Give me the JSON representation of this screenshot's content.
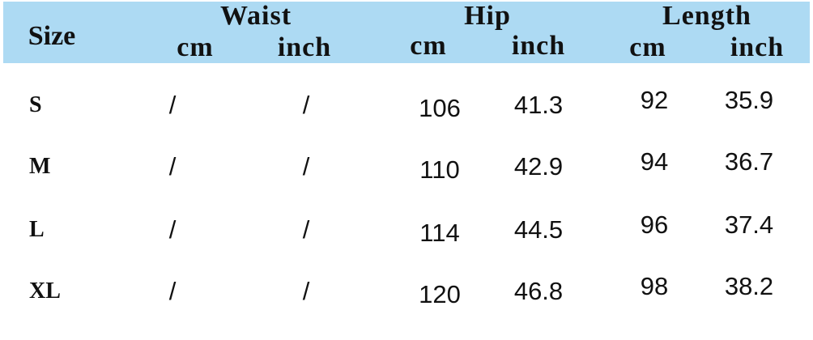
{
  "header": {
    "size": "Size",
    "groups": [
      {
        "label": "Waist",
        "units": [
          "cm",
          "inch"
        ]
      },
      {
        "label": "Hip",
        "units": [
          "cm",
          "inch"
        ]
      },
      {
        "label": "Length",
        "units": [
          "cm",
          "inch"
        ]
      }
    ]
  },
  "header_color": "#ADDAF3",
  "rows": [
    {
      "size": "S",
      "waist_cm": "/",
      "waist_inch": "/",
      "hip_cm": "106",
      "hip_inch": "41.3",
      "length_cm": "92",
      "length_inch": "35.9"
    },
    {
      "size": "M",
      "waist_cm": "/",
      "waist_inch": "/",
      "hip_cm": "110",
      "hip_inch": "42.9",
      "length_cm": "94",
      "length_inch": "36.7"
    },
    {
      "size": "L",
      "waist_cm": "/",
      "waist_inch": "/",
      "hip_cm": "114",
      "hip_inch": "44.5",
      "length_cm": "96",
      "length_inch": "37.4"
    },
    {
      "size": "XL",
      "waist_cm": "/",
      "waist_inch": "/",
      "hip_cm": "120",
      "hip_inch": "46.8",
      "length_cm": "98",
      "length_inch": "38.2"
    }
  ]
}
